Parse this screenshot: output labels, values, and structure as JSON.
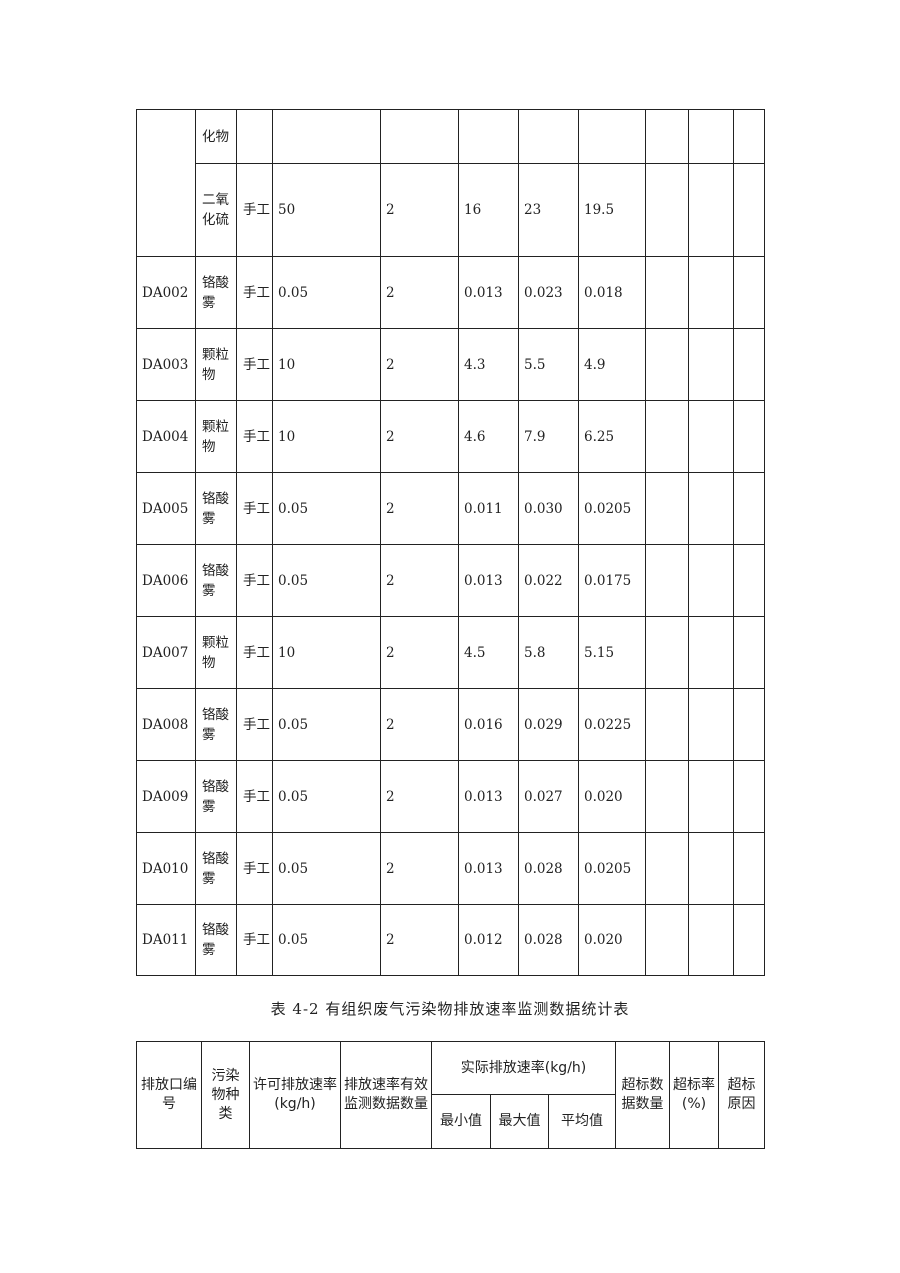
{
  "table_continued": {
    "rows": [
      {
        "outlet": "",
        "pollutant": "化物",
        "method": "",
        "permitted": "",
        "count": "",
        "min": "",
        "max": "",
        "avg": ""
      },
      {
        "outlet": "",
        "pollutant": "二氧化硫",
        "method": "手工",
        "permitted": "50",
        "count": "2",
        "min": "16",
        "max": "23",
        "avg": "19.5"
      },
      {
        "outlet": "DA002",
        "pollutant": "铬酸雾",
        "method": "手工",
        "permitted": "0.05",
        "count": "2",
        "min": "0.013",
        "max": "0.023",
        "avg": "0.018"
      },
      {
        "outlet": "DA003",
        "pollutant": "颗粒物",
        "method": "手工",
        "permitted": "10",
        "count": "2",
        "min": "4.3",
        "max": "5.5",
        "avg": "4.9"
      },
      {
        "outlet": "DA004",
        "pollutant": "颗粒物",
        "method": "手工",
        "permitted": "10",
        "count": "2",
        "min": "4.6",
        "max": "7.9",
        "avg": "6.25"
      },
      {
        "outlet": "DA005",
        "pollutant": "铬酸雾",
        "method": "手工",
        "permitted": "0.05",
        "count": "2",
        "min": "0.011",
        "max": "0.030",
        "avg": "0.0205"
      },
      {
        "outlet": "DA006",
        "pollutant": "铬酸雾",
        "method": "手工",
        "permitted": "0.05",
        "count": "2",
        "min": "0.013",
        "max": "0.022",
        "avg": "0.0175"
      },
      {
        "outlet": "DA007",
        "pollutant": "颗粒物",
        "method": "手工",
        "permitted": "10",
        "count": "2",
        "min": "4.5",
        "max": "5.8",
        "avg": "5.15"
      },
      {
        "outlet": "DA008",
        "pollutant": "铬酸雾",
        "method": "手工",
        "permitted": "0.05",
        "count": "2",
        "min": "0.016",
        "max": "0.029",
        "avg": "0.0225"
      },
      {
        "outlet": "DA009",
        "pollutant": "铬酸雾",
        "method": "手工",
        "permitted": "0.05",
        "count": "2",
        "min": "0.013",
        "max": "0.027",
        "avg": "0.020"
      },
      {
        "outlet": "DA010",
        "pollutant": "铬酸雾",
        "method": "手工",
        "permitted": "0.05",
        "count": "2",
        "min": "0.013",
        "max": "0.028",
        "avg": "0.0205"
      },
      {
        "outlet": "DA011",
        "pollutant": "铬酸雾",
        "method": "手工",
        "permitted": "0.05",
        "count": "2",
        "min": "0.012",
        "max": "0.028",
        "avg": "0.020"
      }
    ]
  },
  "table_4_2": {
    "caption": "表 4-2 有组织废气污染物排放速率监测数据统计表",
    "headers": {
      "outlet": "排放口编号",
      "pollutant": "污染物种类",
      "permitted": "许可排放速率(kg/h)",
      "count": "排放速率有效监测数据数量",
      "actual": "实际排放速率(kg/h)",
      "min": "最小值",
      "max": "最大值",
      "avg": "平均值",
      "exceed_count": "超标数据数量",
      "exceed_rate": "超标率(%)",
      "exceed_reason": "超标原因"
    }
  }
}
